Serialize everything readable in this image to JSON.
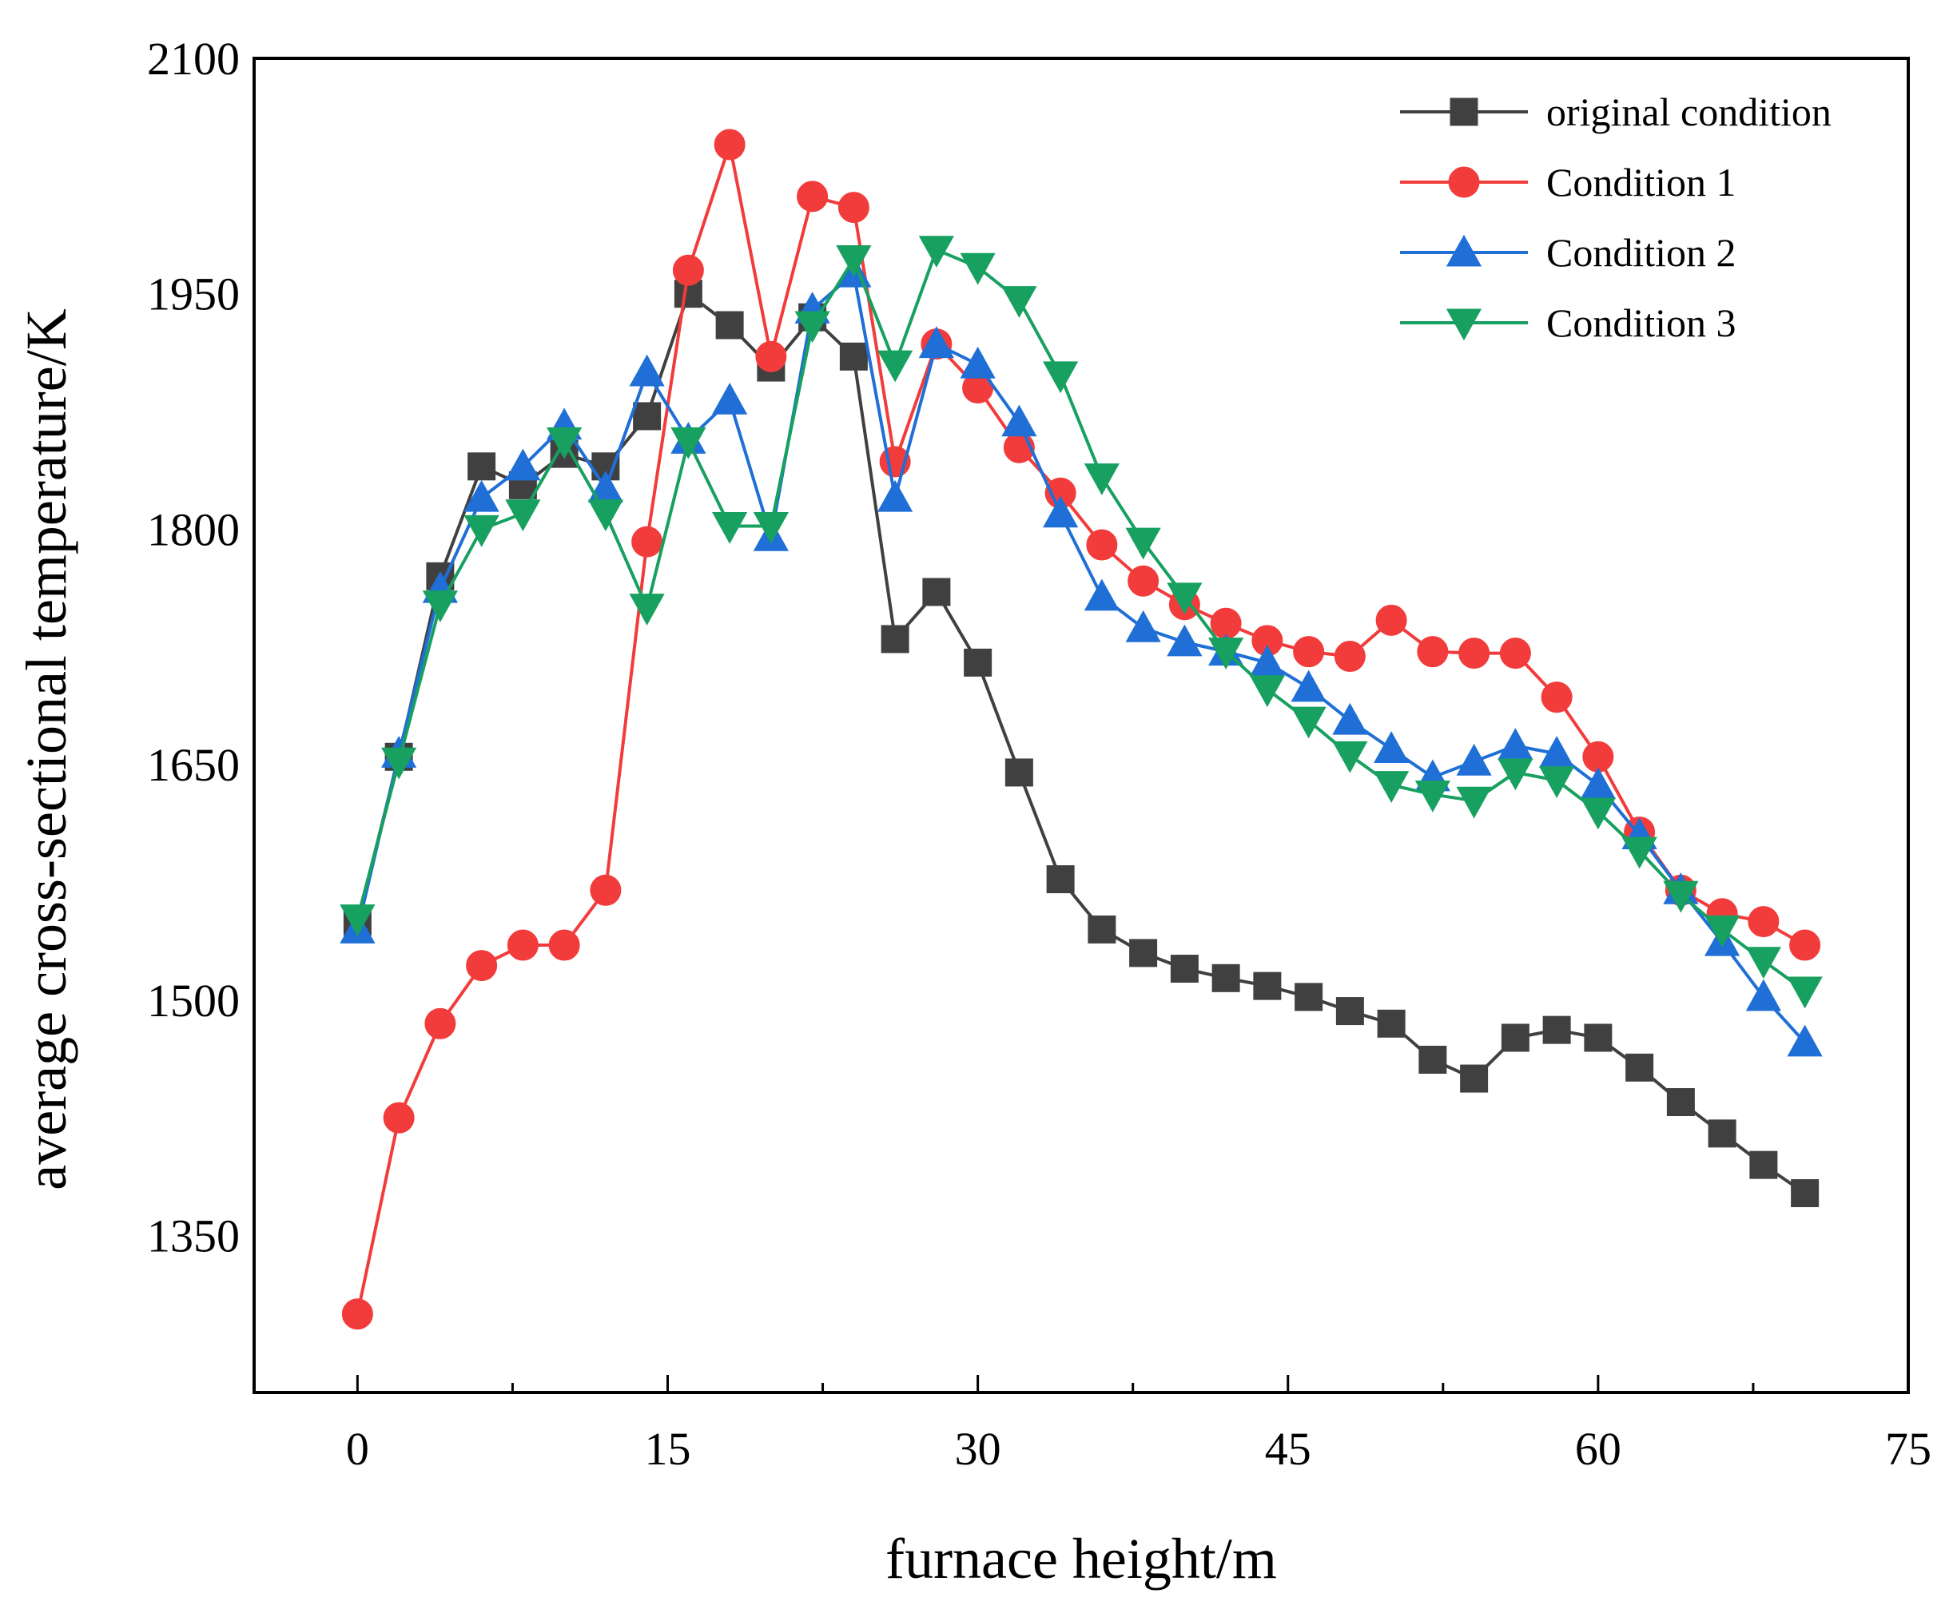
{
  "chart_data": {
    "type": "line",
    "title": "",
    "xlabel": "furnace height/m",
    "ylabel": "average cross-sectional temperature/K",
    "xlim": [
      -5,
      75
    ],
    "ylim": [
      1250,
      2100
    ],
    "xticks": [
      0,
      15,
      30,
      45,
      60,
      75
    ],
    "yticks": [
      1350,
      1500,
      1650,
      1800,
      1950,
      2100
    ],
    "grid": false,
    "legend_position": "top-right",
    "x": [
      0,
      2,
      4,
      6,
      8,
      10,
      12,
      14,
      16,
      18,
      20,
      22,
      24,
      26,
      28,
      30,
      32,
      34,
      36,
      38,
      40,
      42,
      44,
      46,
      48,
      50,
      52,
      54,
      56,
      58,
      60,
      62,
      64,
      66,
      68,
      70
    ],
    "series": [
      {
        "name": " original condition",
        "color": "#404040",
        "marker": "square",
        "values": [
          1550,
          1655,
          1770,
          1840,
          1828,
          1848,
          1840,
          1872,
          1950,
          1930,
          1903,
          1935,
          1910,
          1730,
          1760,
          1715,
          1645,
          1577,
          1545,
          1530,
          1520,
          1514,
          1509,
          1502,
          1493,
          1485,
          1462,
          1450,
          1476,
          1481,
          1476,
          1457,
          1435,
          1415,
          1395,
          1377
        ]
      },
      {
        "name": "Condition 1",
        "color": "#f23c3c",
        "marker": "circle",
        "values": [
          1300,
          1425,
          1485,
          1522,
          1535,
          1535,
          1570,
          1792,
          1965,
          2045,
          1910,
          2012,
          2005,
          1843,
          1918,
          1890,
          1852,
          1823,
          1790,
          1767,
          1752,
          1740,
          1729,
          1722,
          1719,
          1742,
          1722,
          1721,
          1721,
          1693,
          1655,
          1607,
          1570,
          1555,
          1550,
          1535
        ]
      },
      {
        "name": "Condition 2",
        "color": "#1f6fd6",
        "marker": "triangle-up",
        "values": [
          1545,
          1657,
          1762,
          1820,
          1840,
          1866,
          1826,
          1900,
          1857,
          1882,
          1795,
          1940,
          1963,
          1820,
          1918,
          1905,
          1868,
          1810,
          1757,
          1737,
          1728,
          1722,
          1715,
          1699,
          1678,
          1660,
          1642,
          1652,
          1662,
          1657,
          1637,
          1605,
          1570,
          1537,
          1502,
          1473
        ]
      },
      {
        "name": "Condition 3",
        "color": "#17a05f",
        "marker": "triangle-down",
        "values": [
          1552,
          1652,
          1752,
          1800,
          1810,
          1856,
          1810,
          1750,
          1856,
          1802,
          1802,
          1930,
          1972,
          1905,
          1978,
          1967,
          1946,
          1898,
          1833,
          1792,
          1757,
          1722,
          1698,
          1678,
          1656,
          1637,
          1631,
          1627,
          1645,
          1640,
          1620,
          1595,
          1567,
          1545,
          1525,
          1506
        ]
      }
    ]
  }
}
